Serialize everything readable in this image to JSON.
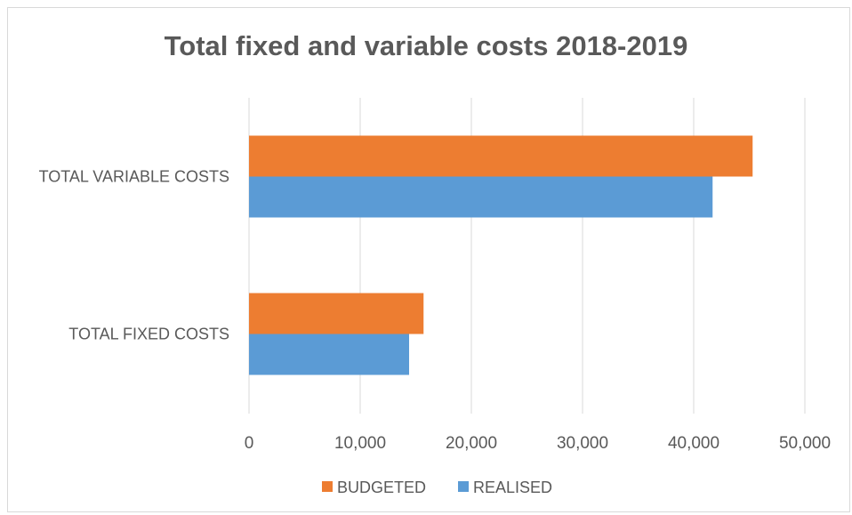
{
  "chart_data": {
    "type": "bar",
    "orientation": "horizontal",
    "title": "Total fixed and variable costs 2018-2019",
    "categories": [
      "TOTAL VARIABLE COSTS",
      "TOTAL FIXED COSTS"
    ],
    "series": [
      {
        "name": "BUDGETED",
        "color": "#ED7D31",
        "values": [
          45300,
          15700
        ]
      },
      {
        "name": "REALISED",
        "color": "#5B9BD5",
        "values": [
          41700,
          14400
        ]
      }
    ],
    "xlim": [
      0,
      50000
    ],
    "xticks": [
      0,
      10000,
      20000,
      30000,
      40000,
      50000
    ],
    "xtick_labels": [
      "0",
      "10,000",
      "20,000",
      "30,000",
      "40,000",
      "50,000"
    ],
    "grid": true,
    "legend_position": "bottom"
  }
}
